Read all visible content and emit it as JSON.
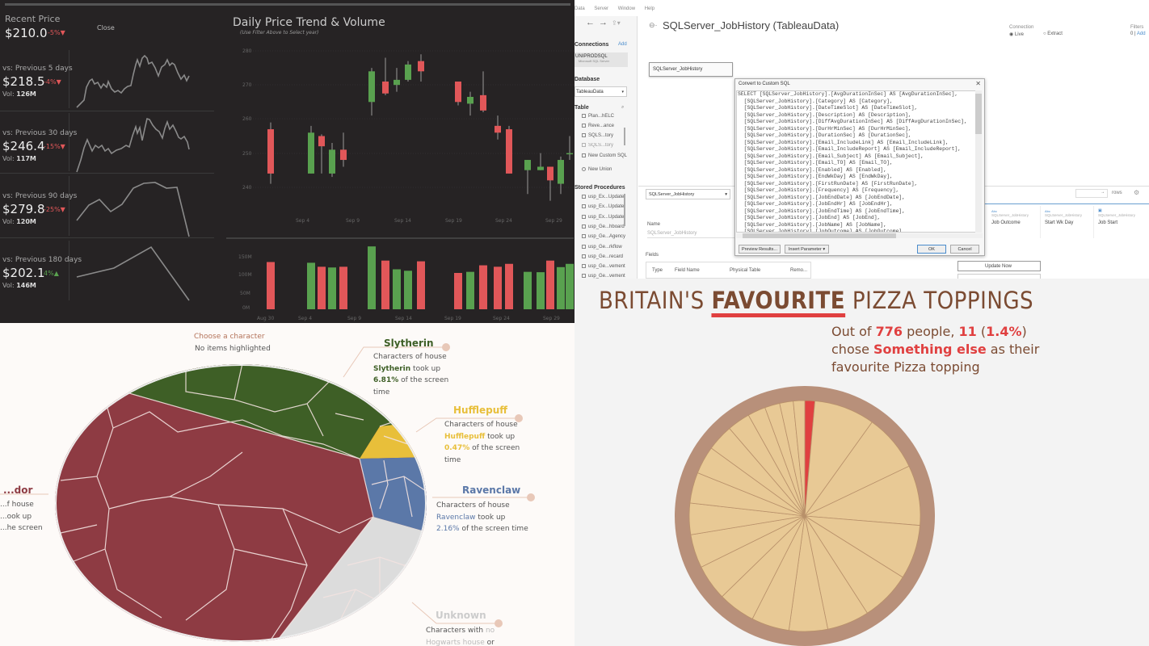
{
  "stock_dashboard": {
    "recent": {
      "label": "Recent Price",
      "price": "$210.0",
      "change": "-5%▼",
      "close_label": "Close"
    },
    "kpis": [
      {
        "label": "vs: Previous 5 days",
        "price": "$218.5",
        "change": "-4%▼",
        "vol_label": "Vol:",
        "vol": "126M",
        "dir": "down"
      },
      {
        "label": "vs: Previous 30 days",
        "price": "$246.4",
        "change": "-15%▼",
        "vol_label": "Vol:",
        "vol": "117M",
        "dir": "down"
      },
      {
        "label": "vs: Previous 90 days",
        "price": "$279.8",
        "change": "-25%▼",
        "vol_label": "Vol:",
        "vol": "120M",
        "dir": "down"
      },
      {
        "label": "vs: Previous 180 days",
        "price": "$202.1",
        "change": "4%▲",
        "vol_label": "Vol:",
        "vol": "146M",
        "dir": "up"
      }
    ],
    "title": "Daily Price Trend & Volume",
    "subtitle": "(Use Filter Above to Select year)",
    "colors": {
      "up": "#59a14f",
      "down": "#e15759",
      "bg": "#262324"
    }
  },
  "chart_data": [
    {
      "type": "candlestick",
      "title": "Daily Price Trend & Volume",
      "ylim": [
        235,
        282
      ],
      "yticks": [
        240,
        250,
        260,
        270,
        280
      ],
      "xticks": [
        "Sep 4",
        "Sep 9",
        "Sep 14",
        "Sep 19",
        "Sep 24",
        "Sep 29"
      ],
      "candles": [
        {
          "date": "Sep 1",
          "open": 257,
          "close": 244,
          "high": 259,
          "low": 241
        },
        {
          "date": "Sep 5",
          "open": 244,
          "close": 256,
          "high": 258,
          "low": 244
        },
        {
          "date": "Sep 6",
          "open": 255,
          "close": 252,
          "high": 255.5,
          "low": 244
        },
        {
          "date": "Sep 7",
          "open": 244,
          "close": 251,
          "high": 253,
          "low": 243
        },
        {
          "date": "Sep 8",
          "open": 251,
          "close": 248,
          "high": 256,
          "low": 246
        },
        {
          "date": "Sep 12",
          "open": 265,
          "close": 274,
          "high": 275,
          "low": 261
        },
        {
          "date": "Sep 13",
          "open": 271,
          "close": 267.5,
          "high": 278,
          "low": 267
        },
        {
          "date": "Sep 14",
          "open": 270,
          "close": 271.5,
          "high": 275,
          "low": 268
        },
        {
          "date": "Sep 15",
          "open": 271.5,
          "close": 276,
          "high": 277,
          "low": 271
        },
        {
          "date": "Sep 16",
          "open": 277,
          "close": 274,
          "high": 279,
          "low": 271
        },
        {
          "date": "Sep 19",
          "open": 271,
          "close": 265,
          "high": 271,
          "low": 264
        },
        {
          "date": "Sep 20",
          "open": 264.5,
          "close": 266.5,
          "high": 268,
          "low": 261
        },
        {
          "date": "Sep 21",
          "open": 267,
          "close": 262.5,
          "high": 274,
          "low": 262
        },
        {
          "date": "Sep 22",
          "open": 258,
          "close": 256,
          "high": 261,
          "low": 254
        },
        {
          "date": "Sep 23",
          "open": 257,
          "close": 244,
          "high": 258,
          "low": 244
        },
        {
          "date": "Sep 26",
          "open": 245,
          "close": 248,
          "high": 248,
          "low": 238
        },
        {
          "date": "Sep 27",
          "open": 245,
          "close": 246,
          "high": 250,
          "low": 245
        },
        {
          "date": "Sep 28",
          "open": 246,
          "close": 242,
          "high": 246,
          "low": 236
        },
        {
          "date": "Sep 29",
          "open": 241,
          "close": 248,
          "high": 249,
          "low": 238
        },
        {
          "date": "Sep 30",
          "open": 250,
          "close": 250,
          "high": 255,
          "low": 248
        }
      ]
    },
    {
      "type": "bar",
      "title": "Volume",
      "yticks": [
        "0M",
        "50M",
        "100M",
        "150M"
      ],
      "ylim": [
        0,
        180
      ],
      "xticks": [
        "Aug 30",
        "Sep 4",
        "Sep 9",
        "Sep 14",
        "Sep 19",
        "Sep 24",
        "Sep 29"
      ],
      "values": [
        130,
        128,
        117,
        115,
        117,
        173,
        134,
        110,
        106,
        132,
        100,
        103,
        121,
        117,
        125,
        103,
        102,
        134,
        116,
        125
      ],
      "colors": [
        "down",
        "up",
        "down",
        "up",
        "down",
        "up",
        "down",
        "up",
        "up",
        "down",
        "down",
        "up",
        "down",
        "down",
        "down",
        "up",
        "up",
        "down",
        "up",
        "up"
      ]
    },
    {
      "type": "pie",
      "title": "BRITAIN'S FAVOURITE PIZZA TOPPINGS",
      "total": 776,
      "highlighted": {
        "label": "Something else",
        "count": 11,
        "pct": 1.4
      },
      "slice_pcts": [
        1.4,
        8.5,
        8.0,
        8.4,
        7.6,
        7.0,
        5.9,
        5.4,
        5.3,
        5.2,
        5.0,
        4.7,
        4.4,
        4.3,
        3.9,
        3.7,
        3.2,
        2.5,
        2.1,
        1.9,
        1.6
      ]
    },
    {
      "type": "voronoi-treemap",
      "title": "Screen time by Hogwarts house",
      "series": [
        {
          "name": "Gryffindor",
          "color": "#8e3b43"
        },
        {
          "name": "Slytherin",
          "pct": 6.81,
          "color": "#3e5f26"
        },
        {
          "name": "Hufflepuff",
          "pct": 0.47,
          "color": "#e8bf3a"
        },
        {
          "name": "Ravenclaw",
          "pct": 2.16,
          "color": "#5b78a8"
        },
        {
          "name": "Unknown",
          "color": "#dcdcdc"
        }
      ]
    }
  ],
  "tableau": {
    "menu": [
      "Data",
      "Server",
      "Window",
      "Help"
    ],
    "datasource_title": "SQLServer_JobHistory (TableauData)",
    "connections_label": "Connections",
    "add_label": "Add",
    "connection_name": "UNIPRODSQL",
    "connection_type": "Microsoft SQL Server",
    "database_label": "Database",
    "database_value": "TableauData",
    "table_label": "Table",
    "tables": [
      "Plan...hELC",
      "Reve...ance",
      "SQLS...tory",
      "SQLS...tory"
    ],
    "new_custom_sql": "New Custom SQL",
    "new_union": "New Union",
    "stored_procedures_label": "Stored Procedures",
    "procedures": [
      "usp_Ex...Update",
      "usp_Ex...Update",
      "usp_Ex...Update",
      "usp_Ge...hboard",
      "usp_Ge...Agency",
      "usp_Ge...rkflow",
      "usp_Ge...recard",
      "usp_Ge...vement",
      "usp_Ge...vement"
    ],
    "connection": {
      "label": "Connection",
      "live": "Live",
      "extract": "Extract"
    },
    "filters": {
      "label": "Filters",
      "count": "0",
      "add": "Add"
    },
    "canvas_table": "SQLServer_JobHistory",
    "table_select": "SQLServer_JobHistory",
    "name_label": "Name",
    "name_value": "SQLServer_JobHistory",
    "fields_label": "Fields",
    "field_columns": [
      "Type",
      "Field Name",
      "Physical Table",
      "Remo..."
    ],
    "rows_label": "rows",
    "grid_columns": [
      {
        "type": "Abc",
        "source": "SQLServer_JobHistory",
        "name": "Job Outcome"
      },
      {
        "type": "Abc",
        "source": "SQLServer_JobHistory",
        "name": "Start Wk Day"
      },
      {
        "type": "date",
        "source": "SQLServer_JobHistory",
        "name": "Job Start"
      }
    ],
    "update_now": "Update Now",
    "dialog": {
      "title": "Convert to Custom SQL",
      "sql": "SELECT [SQLServer_JobHistory].[AvgDurationInSec] AS [AvgDurationInSec],\n  [SQLServer_JobHistory].[Category] AS [Category],\n  [SQLServer_JobHistory].[DateTimeSlot] AS [DateTimeSlot],\n  [SQLServer_JobHistory].[Description] AS [Description],\n  [SQLServer_JobHistory].[DiffAvgDurationInSec] AS [DiffAvgDurationInSec],\n  [SQLServer_JobHistory].[DurHrMinSec] AS [DurHrMinSec],\n  [SQLServer_JobHistory].[DurationSec] AS [DurationSec],\n  [SQLServer_JobHistory].[Email_IncludeLink] AS [Email_IncludeLink],\n  [SQLServer_JobHistory].[Email_IncludeReport] AS [Email_IncludeReport],\n  [SQLServer_JobHistory].[Email_Subject] AS [Email_Subject],\n  [SQLServer_JobHistory].[Email_TO] AS [Email_TO],\n  [SQLServer_JobHistory].[Enabled] AS [Enabled],\n  [SQLServer_JobHistory].[EndWkDay] AS [EndWkDay],\n  [SQLServer_JobHistory].[FirstRunDate] AS [FirstRunDate],\n  [SQLServer_JobHistory].[Frequency] AS [Frequency],\n  [SQLServer_JobHistory].[JobEndDate] AS [JobEndDate],\n  [SQLServer_JobHistory].[JobEndHr] AS [JobEndHr],\n  [SQLServer_JobHistory].[JobEndTime] AS [JobEndTime],\n  [SQLServer_JobHistory].[JobEnd] AS [JobEnd],\n  [SQLServer_JobHistory].[JobName] AS [JobName],\n  [SQLServer_JobHistory].[JobOutcome] AS [JobOutcome]",
      "preview": "Preview Results...",
      "insert_param": "Insert Parameter",
      "ok": "OK",
      "cancel": "Cancel"
    }
  },
  "hogwarts": {
    "choose_label": "Choose a character",
    "choose_value": "No items highlighted",
    "houses": {
      "gryffindor": {
        "name": "...dor",
        "l1": "...f house",
        "l2": "...ook up",
        "l3": "...he screen"
      },
      "slytherin": {
        "name": "Slytherin",
        "l1": "Characters of house",
        "house": "Slytherin",
        "tookup": " took up",
        "pct": "6.81%",
        "rest": " of the screen",
        "l4": "time"
      },
      "hufflepuff": {
        "name": "Hufflepuff",
        "l1": "Characters of house",
        "house": "Hufflepuff",
        "tookup": " took up",
        "pct": "0.47%",
        "rest": " of the screen",
        "l4": "time"
      },
      "ravenclaw": {
        "name": "Ravenclaw",
        "l1": "Characters of house",
        "house": "Ravenclaw",
        "tookup": " took up",
        "pct": "2.16%",
        "rest": " of the screen time"
      },
      "unknown": {
        "name": "Unknown",
        "l1a": "Characters with ",
        "l1b": "no",
        "l2a": "Hogwarts house",
        "l2b": " or"
      }
    }
  },
  "pizza": {
    "title_pre": "BRITAIN'S ",
    "title_bold": "FAVOURITE",
    "title_post": " PIZZA TOPPINGS",
    "d1": "Out of ",
    "total": "776",
    "d2": " people, ",
    "count": "11",
    "d3": " (",
    "pct": "1.4%",
    "d4": ")",
    "d5": "chose ",
    "topping": "Something else",
    "d6": " as their",
    "d7": "favourite Pizza topping"
  }
}
